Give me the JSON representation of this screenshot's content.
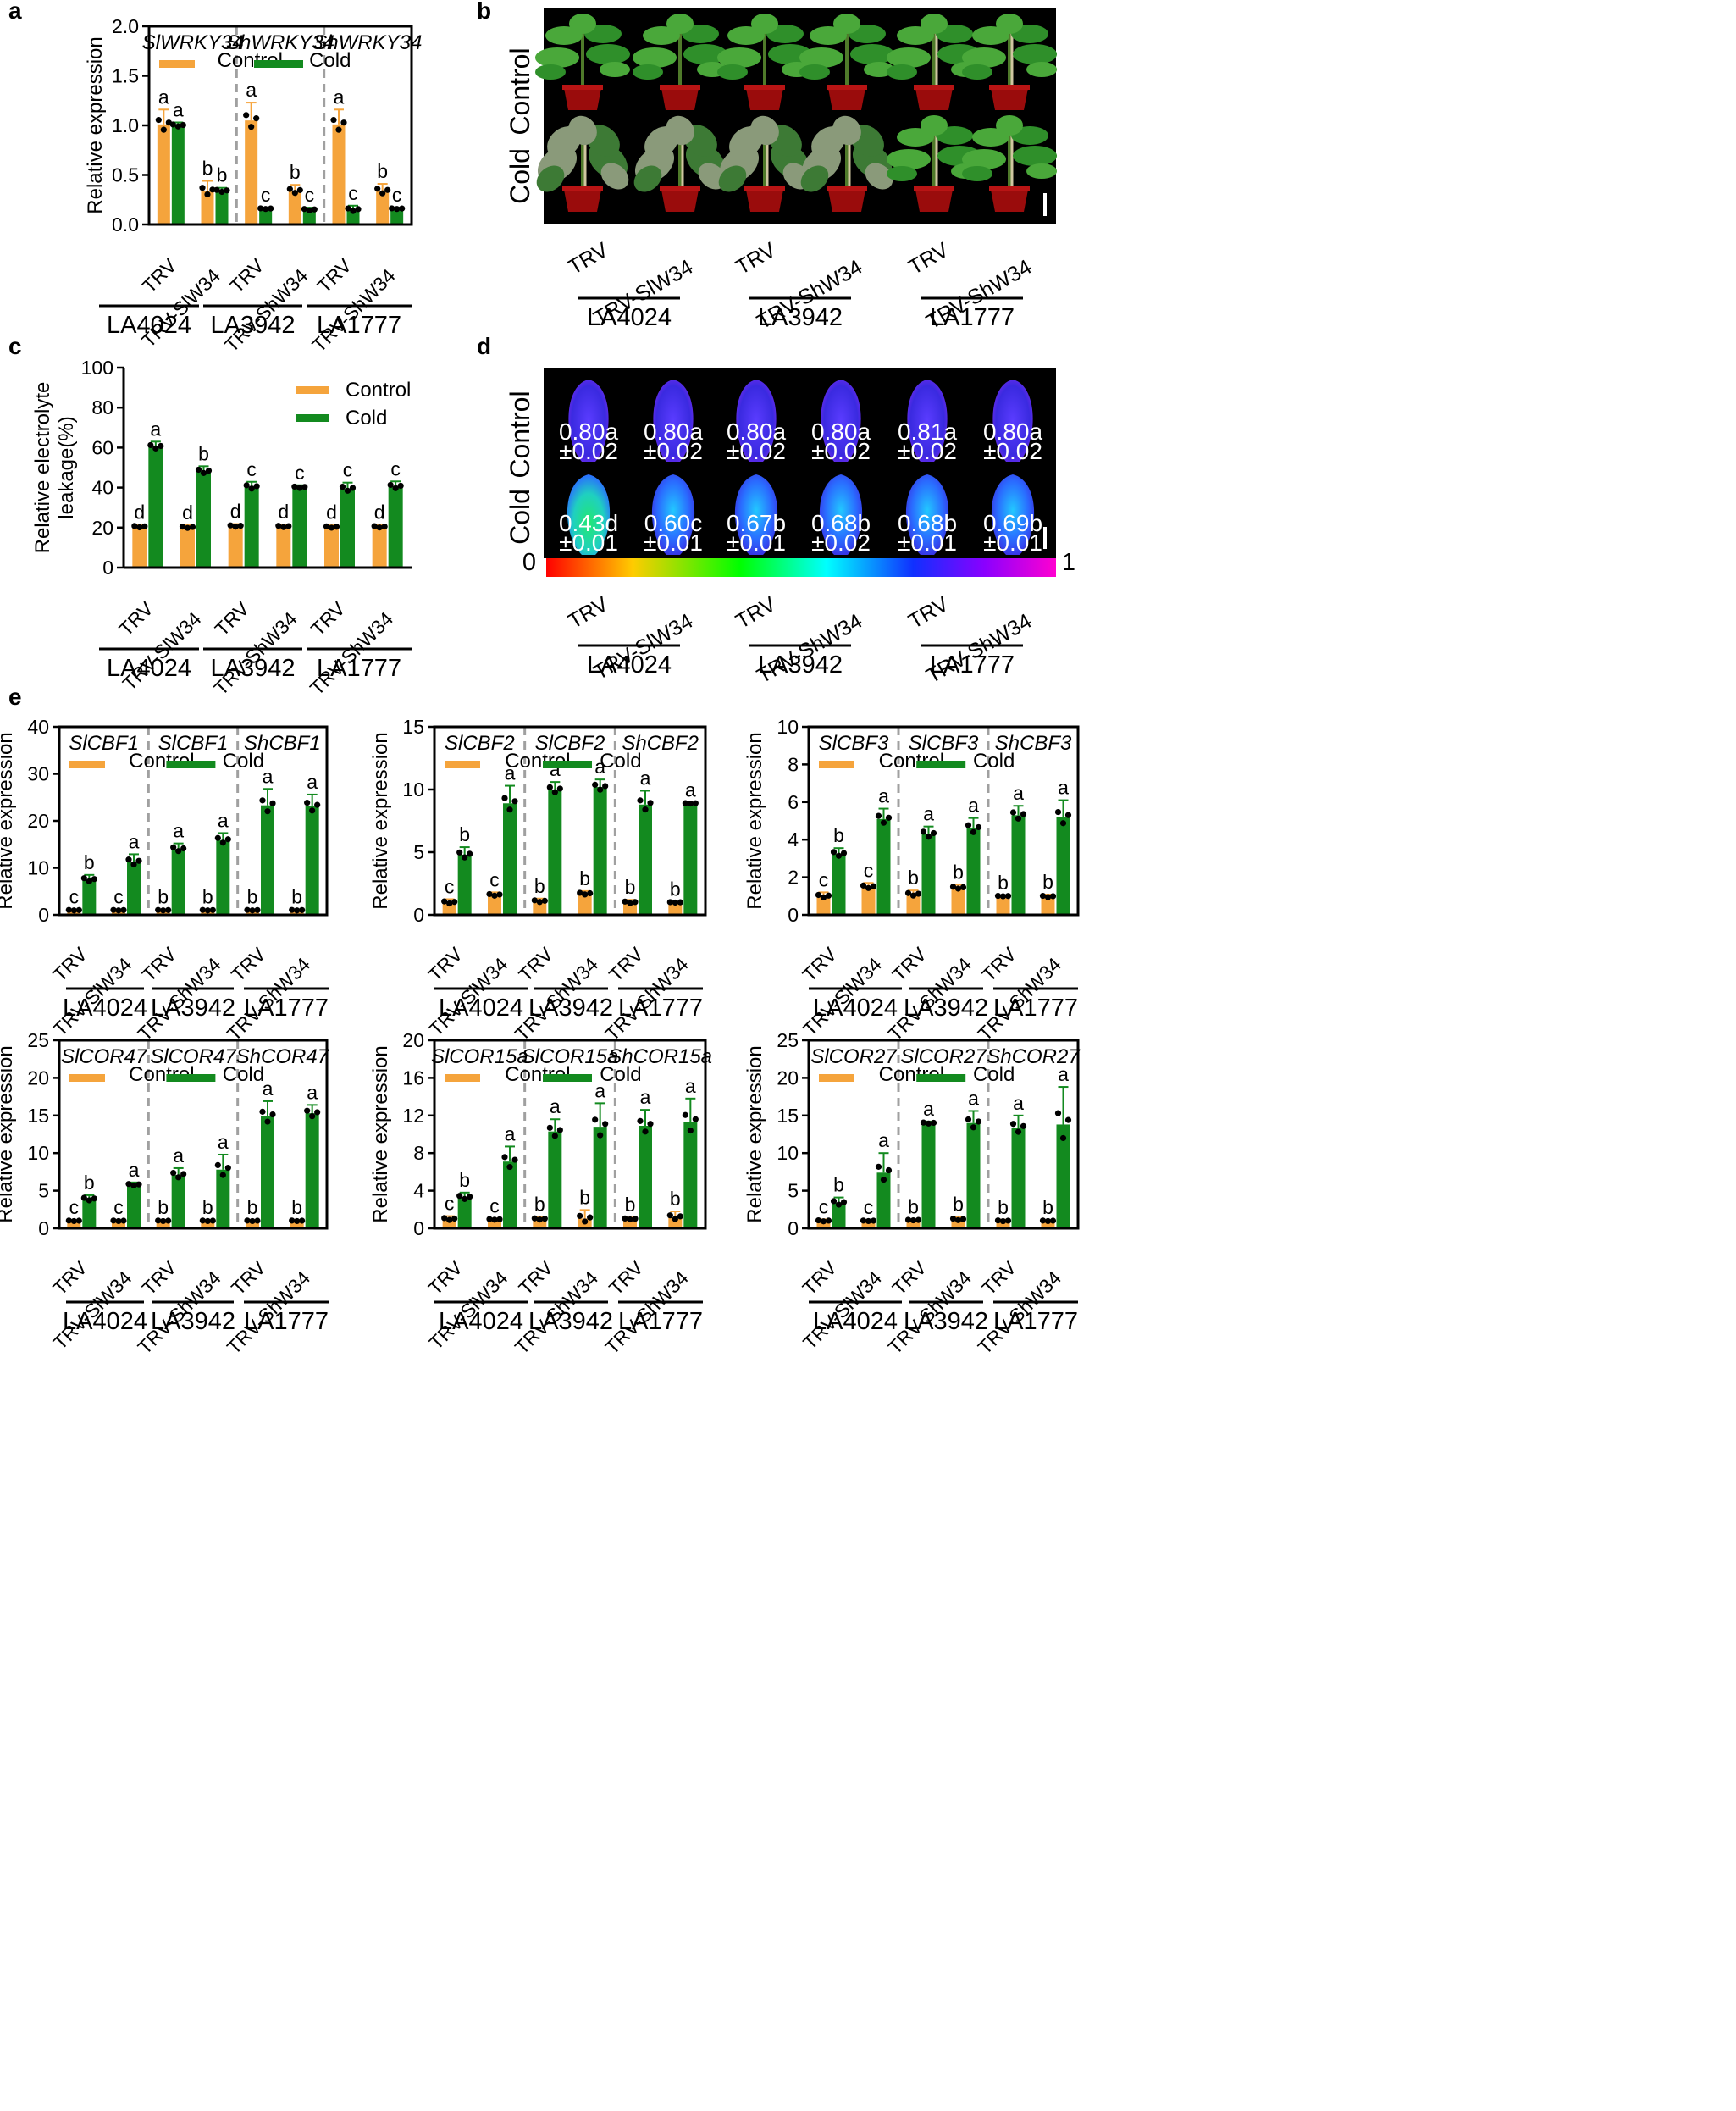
{
  "colors": {
    "control": "#f5a43c",
    "cold": "#138a1f",
    "axis": "#000000",
    "divider": "#a0a0a0"
  },
  "legend": {
    "control": "Control",
    "cold": "Cold"
  },
  "groups": [
    "LA4024",
    "LA3942",
    "LA1777"
  ],
  "xlabels": [
    "TRV",
    "TRV-SlW34",
    "TRV",
    "TRV-ShW34",
    "TRV",
    "TRV-ShW34"
  ],
  "chart_data": [
    {
      "id": "a",
      "type": "bar",
      "panel": "a",
      "ylabel": "Relative expression",
      "ylim": [
        0,
        2.0
      ],
      "yticks": [
        "0.0",
        "0.5",
        "1.0",
        "1.5",
        "2.0"
      ],
      "genes": [
        "SlWRKY34",
        "ShWRKY34",
        "ShWRKY34"
      ],
      "series": [
        {
          "name": "Control",
          "values": [
            1.01,
            0.34,
            1.05,
            0.34,
            1.01,
            0.34
          ],
          "errors": [
            0.15,
            0.1,
            0.18,
            0.06,
            0.15,
            0.07
          ],
          "letters": [
            "a",
            "b",
            "a",
            "b",
            "a",
            "b"
          ]
        },
        {
          "name": "Cold",
          "values": [
            1.0,
            0.34,
            0.16,
            0.15,
            0.15,
            0.16
          ],
          "errors": [
            0.03,
            0.03,
            0.01,
            0.02,
            0.04,
            0.01
          ],
          "letters": [
            "a",
            "b",
            "c",
            "c",
            "c",
            "c"
          ]
        }
      ]
    },
    {
      "id": "c",
      "type": "bar",
      "panel": "c",
      "ylabel": "Relative electrolyte leakage(%)",
      "ylim": [
        0,
        100
      ],
      "yticks": [
        "0",
        "20",
        "40",
        "60",
        "80",
        "100"
      ],
      "series": [
        {
          "name": "Control",
          "values": [
            20.5,
            20.2,
            20.8,
            20.6,
            20.3,
            20.4
          ],
          "errors": [
            1,
            1,
            1,
            1,
            1,
            1
          ],
          "letters": [
            "d",
            "d",
            "d",
            "d",
            "d",
            "d"
          ]
        },
        {
          "name": "Cold",
          "values": [
            60.5,
            48.2,
            40.4,
            40.2,
            39.5,
            40.6
          ],
          "errors": [
            2.5,
            2.5,
            2.5,
            1,
            3,
            2.5
          ],
          "letters": [
            "a",
            "b",
            "c",
            "c",
            "c",
            "c"
          ]
        }
      ]
    },
    {
      "id": "e1",
      "type": "bar",
      "panel": "e",
      "ylabel": "Relative expression",
      "ylim": [
        0,
        40
      ],
      "yticks": [
        "0",
        "10",
        "20",
        "30",
        "40"
      ],
      "genes": [
        "SlCBF1",
        "SlCBF1",
        "ShCBF1"
      ],
      "series": [
        {
          "name": "Control",
          "values": [
            1.0,
            1.0,
            1.0,
            1.0,
            1.0,
            1.0
          ],
          "errors": [
            0.15,
            0.15,
            0.15,
            0.15,
            0.15,
            0.15
          ],
          "letters": [
            "c",
            "c",
            "b",
            "b",
            "b",
            "b"
          ]
        },
        {
          "name": "Cold",
          "values": [
            7.5,
            11.3,
            14.0,
            15.9,
            23.3,
            23.1
          ],
          "errors": [
            1.0,
            1.6,
            1.2,
            1.5,
            3.5,
            2.5
          ],
          "letters": [
            "b",
            "a",
            "a",
            "a",
            "a",
            "a"
          ]
        }
      ]
    },
    {
      "id": "e2",
      "type": "bar",
      "panel": "e",
      "ylabel": "Relative expression",
      "ylim": [
        0,
        15
      ],
      "yticks": [
        "0",
        "5",
        "10",
        "15"
      ],
      "genes": [
        "SlCBF2",
        "SlCBF2",
        "ShCBF2"
      ],
      "series": [
        {
          "name": "Control",
          "values": [
            1.0,
            1.6,
            1.1,
            1.7,
            1.0,
            1.0
          ],
          "errors": [
            0.25,
            0.2,
            0.2,
            0.2,
            0.2,
            0.05
          ],
          "letters": [
            "c",
            "c",
            "b",
            "b",
            "b",
            "b"
          ]
        },
        {
          "name": "Cold",
          "values": [
            4.8,
            8.9,
            10.0,
            10.2,
            8.8,
            8.9
          ],
          "errors": [
            0.6,
            1.4,
            0.6,
            0.6,
            1.1,
            0.05
          ],
          "letters": [
            "b",
            "a",
            "a",
            "a",
            "a",
            "a"
          ]
        }
      ]
    },
    {
      "id": "e3",
      "type": "bar",
      "panel": "e",
      "ylabel": "Relative expression",
      "ylim": [
        0,
        10
      ],
      "yticks": [
        "0",
        "2",
        "4",
        "6",
        "8",
        "10"
      ],
      "genes": [
        "SlCBF3",
        "SlCBF3",
        "ShCBF3"
      ],
      "series": [
        {
          "name": "Control",
          "values": [
            1.0,
            1.5,
            1.1,
            1.45,
            1.0,
            0.98
          ],
          "errors": [
            0.2,
            0.2,
            0.2,
            0.15,
            0.03,
            0.1
          ],
          "letters": [
            "c",
            "c",
            "b",
            "b",
            "b",
            "b"
          ]
        },
        {
          "name": "Cold",
          "values": [
            3.25,
            5.1,
            4.3,
            4.6,
            5.3,
            5.2
          ],
          "errors": [
            0.3,
            0.55,
            0.4,
            0.55,
            0.5,
            0.9
          ],
          "letters": [
            "b",
            "a",
            "a",
            "a",
            "a",
            "a"
          ]
        }
      ]
    },
    {
      "id": "e4",
      "type": "bar",
      "panel": "e",
      "ylabel": "Relative expression",
      "ylim": [
        0,
        25
      ],
      "yticks": [
        "0",
        "5",
        "10",
        "15",
        "20",
        "25"
      ],
      "genes": [
        "SlCOR47",
        "SlCOR47",
        "ShCOR47"
      ],
      "series": [
        {
          "name": "Control",
          "values": [
            1.0,
            1.0,
            1.0,
            1.0,
            1.0,
            1.0
          ],
          "errors": [
            0.1,
            0.1,
            0.1,
            0.1,
            0.1,
            0.1
          ],
          "letters": [
            "c",
            "c",
            "b",
            "b",
            "b",
            "b"
          ]
        },
        {
          "name": "Cold",
          "values": [
            3.9,
            5.8,
            7.1,
            7.8,
            14.9,
            15.3
          ],
          "errors": [
            0.5,
            0.3,
            0.9,
            2.0,
            2.0,
            1.1
          ],
          "letters": [
            "b",
            "a",
            "a",
            "a",
            "a",
            "a"
          ]
        }
      ]
    },
    {
      "id": "e5",
      "type": "bar",
      "panel": "e",
      "ylabel": "Relative expression",
      "ylim": [
        0,
        20
      ],
      "yticks": [
        "0",
        "4",
        "8",
        "12",
        "16",
        "20"
      ],
      "genes": [
        "SlCOR15a",
        "SlCOR15a",
        "ShCOR15a"
      ],
      "series": [
        {
          "name": "Control",
          "values": [
            1.0,
            0.95,
            1.0,
            1.05,
            1.0,
            1.2
          ],
          "errors": [
            0.3,
            0.1,
            0.2,
            0.9,
            0.15,
            0.6
          ],
          "letters": [
            "c",
            "c",
            "b",
            "b",
            "b",
            "b"
          ]
        },
        {
          "name": "Cold",
          "values": [
            3.3,
            7.1,
            10.3,
            10.8,
            10.9,
            11.3
          ],
          "errors": [
            0.5,
            1.6,
            1.3,
            2.5,
            1.7,
            2.5
          ],
          "letters": [
            "b",
            "a",
            "a",
            "a",
            "a",
            "a"
          ]
        }
      ]
    },
    {
      "id": "e6",
      "type": "bar",
      "panel": "e",
      "ylabel": "Relative expression",
      "ylim": [
        0,
        25
      ],
      "yticks": [
        "0",
        "5",
        "10",
        "15",
        "20",
        "25"
      ],
      "genes": [
        "SlCOR27",
        "SlCOR27",
        "ShCOR27"
      ],
      "series": [
        {
          "name": "Control",
          "values": [
            1.0,
            1.0,
            1.1,
            1.2,
            1.0,
            1.0
          ],
          "errors": [
            0.2,
            0.1,
            0.1,
            0.3,
            0.15,
            0.1
          ],
          "letters": [
            "c",
            "c",
            "b",
            "b",
            "b",
            "b"
          ]
        },
        {
          "name": "Cold",
          "values": [
            3.4,
            7.4,
            14.0,
            14.0,
            13.4,
            13.8
          ],
          "errors": [
            0.7,
            2.6,
            0.2,
            1.6,
            1.6,
            5.0
          ],
          "letters": [
            "b",
            "a",
            "a",
            "a",
            "a",
            "a"
          ]
        }
      ]
    }
  ],
  "photo_panels": {
    "b": {
      "rows": [
        "Control",
        "Cold"
      ]
    },
    "d": {
      "rows": [
        "Control",
        "Cold"
      ],
      "scale_min": "0",
      "scale_max": "1",
      "control_values": [
        [
          "0.80a",
          "±0.02"
        ],
        [
          "0.80a",
          "±0.02"
        ],
        [
          "0.80a",
          "±0.02"
        ],
        [
          "0.80a",
          "±0.02"
        ],
        [
          "0.81a",
          "±0.02"
        ],
        [
          "0.80a",
          "±0.02"
        ]
      ],
      "cold_values": [
        [
          "0.43d",
          "±0.01"
        ],
        [
          "0.60c",
          "±0.01"
        ],
        [
          "0.67b",
          "±0.01"
        ],
        [
          "0.68b",
          "±0.02"
        ],
        [
          "0.68b",
          "±0.01"
        ],
        [
          "0.69b",
          "±0.01"
        ]
      ]
    }
  },
  "panel_letters": [
    "a",
    "b",
    "c",
    "d",
    "e"
  ]
}
